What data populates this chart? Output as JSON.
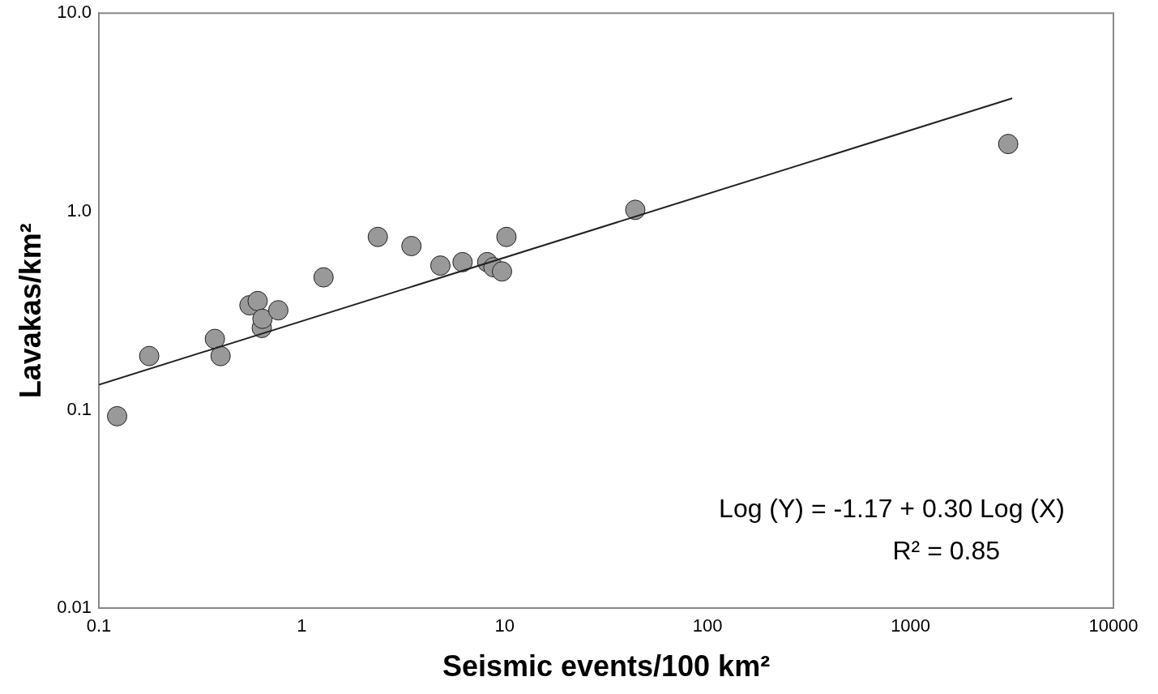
{
  "chart_data": {
    "type": "scatter",
    "xlabel": "Seismic events/100 km²",
    "ylabel": "Lavakas/km²",
    "log": "xy",
    "grid": false,
    "legend": false,
    "marker": "circle",
    "xlim": [
      0.1,
      10000
    ],
    "xticks": [
      0.1,
      1,
      10,
      100,
      1000,
      10000
    ],
    "ylim": [
      0.01,
      10
    ],
    "yticks": [
      0.01,
      0.1,
      {
        "value": 1,
        "label": "1.0"
      },
      {
        "value": 10,
        "label": "10.0"
      }
    ],
    "series": [
      {
        "color": "#999999",
        "x": [
          0.123,
          0.177,
          0.373,
          0.398,
          0.552,
          0.606,
          0.635,
          0.64,
          0.766,
          1.28,
          2.37,
          3.47,
          4.82,
          6.2,
          8.2,
          8.8,
          9.7,
          10.2,
          44,
          3030
        ],
        "values": [
          0.093,
          0.187,
          0.228,
          0.187,
          0.337,
          0.354,
          0.259,
          0.288,
          0.318,
          0.466,
          0.745,
          0.67,
          0.534,
          0.556,
          0.556,
          0.524,
          0.499,
          0.745,
          1.02,
          2.19
        ]
      },
      {
        "type": "line",
        "color": "#222222",
        "marker": "none",
        "x": [
          0.1,
          3170
        ],
        "values": [
          0.134,
          3.72
        ]
      }
    ],
    "annotations": [
      "Log (Y) = -1.17 + 0.30 Log (X)",
      "R² = 0.85"
    ]
  }
}
